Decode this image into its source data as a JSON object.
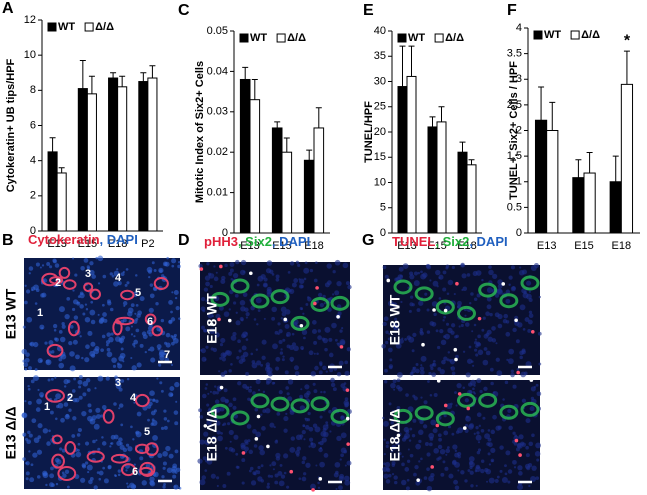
{
  "chart_data": [
    {
      "type": "bar",
      "panel": "A",
      "ylabel": "Cytokeratin+ UB tips/HPF",
      "categories": [
        "E13",
        "E15",
        "E18",
        "P2"
      ],
      "series": [
        {
          "name": "WT",
          "color": "#000000",
          "values": [
            4.5,
            8.1,
            8.7,
            8.5
          ],
          "errors": [
            0.8,
            1.6,
            0.3,
            0.5
          ]
        },
        {
          "name": "Δ/Δ",
          "color": "#ffffff",
          "values": [
            3.3,
            7.8,
            8.2,
            8.7
          ],
          "errors": [
            0.3,
            1.0,
            0.6,
            0.7
          ]
        }
      ],
      "ylim": [
        0,
        12
      ],
      "yticks": [
        0,
        2,
        4,
        6,
        8,
        10,
        12
      ],
      "legend": "upper left"
    },
    {
      "type": "bar",
      "panel": "C",
      "ylabel": "Mitotic Index of Six2+ Cells",
      "categories": [
        "E13",
        "E15",
        "E18"
      ],
      "series": [
        {
          "name": "WT",
          "color": "#000000",
          "values": [
            0.038,
            0.026,
            0.018
          ],
          "errors": [
            0.003,
            0.0015,
            0.0025
          ]
        },
        {
          "name": "Δ/Δ",
          "color": "#ffffff",
          "values": [
            0.033,
            0.02,
            0.026
          ],
          "errors": [
            0.005,
            0.0035,
            0.005
          ]
        }
      ],
      "ylim": [
        0,
        0.05
      ],
      "yticks": [
        0,
        0.01,
        0.02,
        0.03,
        0.04,
        0.05
      ],
      "legend": "upper left"
    },
    {
      "type": "bar",
      "panel": "E",
      "ylabel": "TUNEL/HPF",
      "categories": [
        "E13",
        "E15",
        "E18"
      ],
      "series": [
        {
          "name": "WT",
          "color": "#000000",
          "values": [
            29,
            21,
            16
          ],
          "errors": [
            8,
            2,
            2
          ]
        },
        {
          "name": "Δ/Δ",
          "color": "#ffffff",
          "values": [
            31,
            22,
            13.5
          ],
          "errors": [
            6,
            3,
            1
          ]
        }
      ],
      "ylim": [
        0,
        40
      ],
      "yticks": [
        0,
        5,
        10,
        15,
        20,
        25,
        30,
        35,
        40
      ],
      "legend": "upper left"
    },
    {
      "type": "bar",
      "panel": "F",
      "ylabel": "TUNEL+, Six2+ Cells / HPF",
      "categories": [
        "E13",
        "E15",
        "E18"
      ],
      "series": [
        {
          "name": "WT",
          "color": "#000000",
          "values": [
            2.2,
            1.08,
            1.0
          ],
          "errors": [
            0.65,
            0.35,
            0.5
          ]
        },
        {
          "name": "Δ/Δ",
          "color": "#ffffff",
          "values": [
            2.0,
            1.17,
            2.9
          ],
          "errors": [
            0.55,
            0.4,
            0.65
          ]
        }
      ],
      "ylim": [
        0,
        4
      ],
      "yticks": [
        0,
        0.5,
        1,
        1.5,
        2,
        2.5,
        3,
        3.5,
        4
      ],
      "legend": "upper left",
      "annotations": [
        {
          "text": "*",
          "category": "E18"
        }
      ]
    }
  ],
  "panels": [
    {
      "letter": "B",
      "stain": [
        {
          "text": "Cytokeratin",
          "color": "#e0203a"
        },
        {
          "text": ", DAPI",
          "color": "#1f5fbf"
        }
      ],
      "images": [
        {
          "label": "E13 WT",
          "numbers": [
            "1",
            "2",
            "3",
            "4",
            "5",
            "6",
            "7"
          ]
        },
        {
          "label": "E13 Δ/Δ",
          "numbers": [
            "1",
            "2",
            "3",
            "4",
            "5",
            "6"
          ]
        }
      ]
    },
    {
      "letter": "D",
      "stain": [
        {
          "text": "pHH3",
          "color": "#e0203a"
        },
        {
          "text": ", Six2",
          "color": "#1fae3a"
        },
        {
          "text": ", DAPI",
          "color": "#1f5fbf"
        }
      ],
      "images": [
        {
          "label": "E18 WT"
        },
        {
          "label": "E18 Δ/Δ"
        }
      ]
    },
    {
      "letter": "G",
      "stain": [
        {
          "text": "TUNEL",
          "color": "#e0203a"
        },
        {
          "text": ", Six2",
          "color": "#1fae3a"
        },
        {
          "text": ", DAPI",
          "color": "#1f5fbf"
        }
      ],
      "images": [
        {
          "label": "E18 WT"
        },
        {
          "label": "E18 Δ/Δ"
        }
      ]
    }
  ]
}
